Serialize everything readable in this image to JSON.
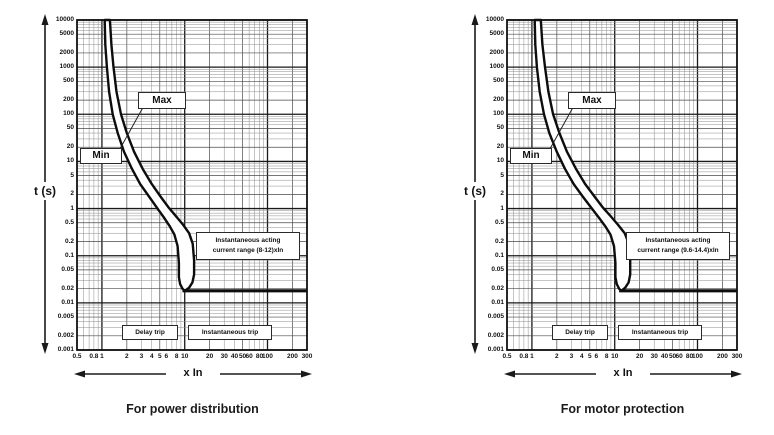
{
  "charts": [
    {
      "name": "power-distribution",
      "caption": "For power distribution",
      "y_axis_label": "t (s)",
      "x_axis_label": "x In",
      "band_labels": {
        "max": "Max",
        "min": "Min"
      },
      "annotations": {
        "instantaneous_note": [
          "Instantaneous acting",
          "current range (8-12)xIn"
        ],
        "delay_trip": "Delay trip",
        "instantaneous_trip": "Instantaneous trip"
      },
      "y_ticks": [
        "10000",
        "5000",
        "2000",
        "1000",
        "500",
        "200",
        "100",
        "50",
        "20",
        "10",
        "5",
        "2",
        "1",
        "0.5",
        "0.2",
        "0.1",
        "0.05",
        "0.02",
        "0.01",
        "0.005",
        "0.002",
        "0.001"
      ],
      "x_ticks": [
        "0.5",
        "0.8",
        "1",
        "2",
        "3",
        "4",
        "5",
        "6",
        "8",
        "10",
        "20",
        "30",
        "40",
        "50",
        "60",
        "80",
        "100",
        "200",
        "300"
      ],
      "chart_data": {
        "type": "area",
        "title": "For power distribution",
        "xlabel": "x In",
        "ylabel": "t (s)",
        "x_scale": "log",
        "y_scale": "log",
        "x_range": [
          0.5,
          300
        ],
        "y_range": [
          0.001,
          10000
        ],
        "grid": "log-log graph paper",
        "instantaneous_pickup_range_xIn": [
          8,
          12
        ],
        "series": [
          {
            "name": "Min",
            "points": [
              [
                1.08,
                10000
              ],
              [
                1.1,
                3000
              ],
              [
                1.15,
                1000
              ],
              [
                1.22,
                300
              ],
              [
                1.35,
                100
              ],
              [
                1.55,
                40
              ],
              [
                1.85,
                16
              ],
              [
                2.3,
                7
              ],
              [
                2.9,
                3.3
              ],
              [
                3.7,
                1.8
              ],
              [
                4.6,
                1.05
              ],
              [
                5.6,
                0.65
              ],
              [
                6.6,
                0.42
              ],
              [
                7.5,
                0.28
              ],
              [
                8.2,
                0.16
              ],
              [
                8.5,
                0.07
              ],
              [
                8.5,
                0.035
              ],
              [
                8.8,
                0.025
              ],
              [
                9.4,
                0.02
              ],
              [
                10,
                0.018
              ]
            ]
          },
          {
            "name": "Max",
            "points": [
              [
                1.25,
                10000
              ],
              [
                1.3,
                3000
              ],
              [
                1.38,
                1000
              ],
              [
                1.5,
                300
              ],
              [
                1.7,
                100
              ],
              [
                2.0,
                40
              ],
              [
                2.45,
                16
              ],
              [
                3.1,
                7
              ],
              [
                4.0,
                3.3
              ],
              [
                5.1,
                1.8
              ],
              [
                6.4,
                1.05
              ],
              [
                7.9,
                0.68
              ],
              [
                9.6,
                0.45
              ],
              [
                11.3,
                0.3
              ],
              [
                12.5,
                0.18
              ],
              [
                13,
                0.08
              ],
              [
                13,
                0.04
              ],
              [
                12.4,
                0.027
              ],
              [
                11.3,
                0.021
              ],
              [
                10,
                0.018
              ]
            ]
          }
        ],
        "instantaneous_line": {
          "t": 0.018,
          "x_from": 9.4,
          "x_to": 300
        }
      }
    },
    {
      "name": "motor-protection",
      "caption": "For motor protection",
      "y_axis_label": "t (s)",
      "x_axis_label": "x In",
      "band_labels": {
        "max": "Max",
        "min": "Min"
      },
      "annotations": {
        "instantaneous_note": [
          "Instantaneous acting",
          "current range (9.6-14.4)xIn"
        ],
        "delay_trip": "Delay trip",
        "instantaneous_trip": "Instantaneous trip"
      },
      "y_ticks": [
        "10000",
        "5000",
        "2000",
        "1000",
        "500",
        "200",
        "100",
        "50",
        "20",
        "10",
        "5",
        "2",
        "1",
        "0.5",
        "0.2",
        "0.1",
        "0.05",
        "0.02",
        "0.01",
        "0.005",
        "0.002",
        "0.001"
      ],
      "x_ticks": [
        "0.5",
        "0.8",
        "1",
        "2",
        "3",
        "4",
        "5",
        "6",
        "8",
        "10",
        "20",
        "30",
        "40",
        "50",
        "60",
        "80",
        "100",
        "200",
        "300"
      ],
      "chart_data": {
        "type": "area",
        "title": "For motor protection",
        "xlabel": "x In",
        "ylabel": "t (s)",
        "x_scale": "log",
        "y_scale": "log",
        "x_range": [
          0.5,
          300
        ],
        "y_range": [
          0.001,
          10000
        ],
        "grid": "log-log graph paper",
        "instantaneous_pickup_range_xIn": [
          9.6,
          14.4
        ],
        "series": [
          {
            "name": "Min",
            "points": [
              [
                1.08,
                10000
              ],
              [
                1.1,
                3000
              ],
              [
                1.15,
                1000
              ],
              [
                1.24,
                300
              ],
              [
                1.4,
                100
              ],
              [
                1.62,
                40
              ],
              [
                2.0,
                16
              ],
              [
                2.5,
                7
              ],
              [
                3.2,
                3.3
              ],
              [
                4.1,
                1.8
              ],
              [
                5.2,
                1.05
              ],
              [
                6.4,
                0.65
              ],
              [
                7.7,
                0.42
              ],
              [
                8.9,
                0.28
              ],
              [
                9.8,
                0.16
              ],
              [
                10.2,
                0.07
              ],
              [
                10.2,
                0.035
              ],
              [
                10.6,
                0.025
              ],
              [
                11.3,
                0.02
              ],
              [
                12,
                0.018
              ]
            ]
          },
          {
            "name": "Max",
            "points": [
              [
                1.28,
                10000
              ],
              [
                1.34,
                3000
              ],
              [
                1.44,
                1000
              ],
              [
                1.58,
                300
              ],
              [
                1.8,
                100
              ],
              [
                2.15,
                40
              ],
              [
                2.65,
                16
              ],
              [
                3.4,
                7
              ],
              [
                4.4,
                3.3
              ],
              [
                5.7,
                1.8
              ],
              [
                7.2,
                1.05
              ],
              [
                9.0,
                0.68
              ],
              [
                11.0,
                0.45
              ],
              [
                13.2,
                0.3
              ],
              [
                14.8,
                0.18
              ],
              [
                15.4,
                0.08
              ],
              [
                15.4,
                0.04
              ],
              [
                14.7,
                0.027
              ],
              [
                13.4,
                0.021
              ],
              [
                12,
                0.018
              ]
            ]
          }
        ],
        "instantaneous_line": {
          "t": 0.018,
          "x_from": 11.3,
          "x_to": 300
        }
      }
    }
  ]
}
